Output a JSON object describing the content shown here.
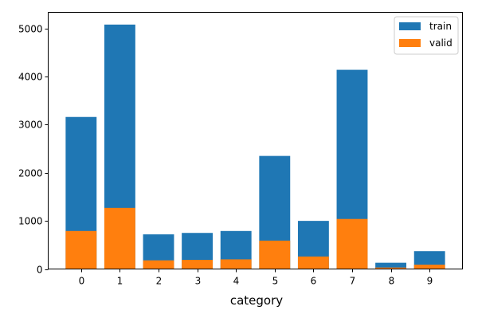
{
  "chart_data": {
    "type": "bar",
    "stacking": "overlay",
    "categories": [
      "0",
      "1",
      "2",
      "3",
      "4",
      "5",
      "6",
      "7",
      "8",
      "9"
    ],
    "series": [
      {
        "name": "train",
        "color": "#1f77b4",
        "values": [
          3160,
          5080,
          720,
          750,
          790,
          2350,
          1000,
          4140,
          130,
          370
        ]
      },
      {
        "name": "valid",
        "color": "#ff7f0e",
        "values": [
          790,
          1270,
          180,
          190,
          200,
          590,
          260,
          1040,
          30,
          90
        ]
      }
    ],
    "title": "",
    "xlabel": "category",
    "ylabel": "",
    "ylim": [
      0,
      5334
    ],
    "yticks": [
      0,
      1000,
      2000,
      3000,
      4000,
      5000
    ],
    "grid": false,
    "legend_position": "top-right"
  }
}
